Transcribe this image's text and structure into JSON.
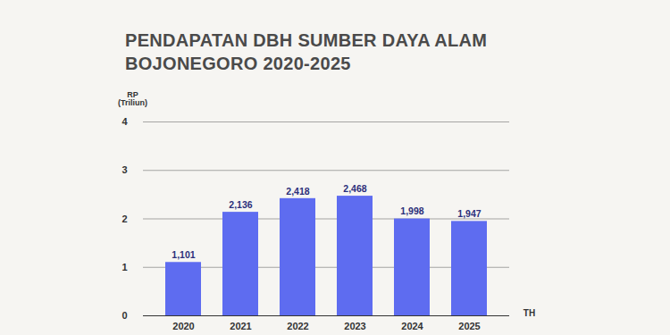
{
  "chart_data": {
    "type": "bar",
    "title": "PENDAPATAN DBH SUMBER DAYA ALAM\nBOJONEGORO 2020-2025",
    "ylabel": "RP\n(Triliun)",
    "xlabel": "TH",
    "categories": [
      "2020",
      "2021",
      "2022",
      "2023",
      "2024",
      "2025"
    ],
    "values": [
      1.101,
      2.136,
      2.418,
      2.468,
      1.998,
      1.947
    ],
    "value_labels": [
      "1,101",
      "2,136",
      "2,418",
      "2,468",
      "1,998",
      "1,947"
    ],
    "color": "#5e6cf0",
    "ylim": [
      0,
      4
    ],
    "yticks": [
      0,
      1,
      2,
      3,
      4
    ],
    "grid": true,
    "data_labels": true
  }
}
